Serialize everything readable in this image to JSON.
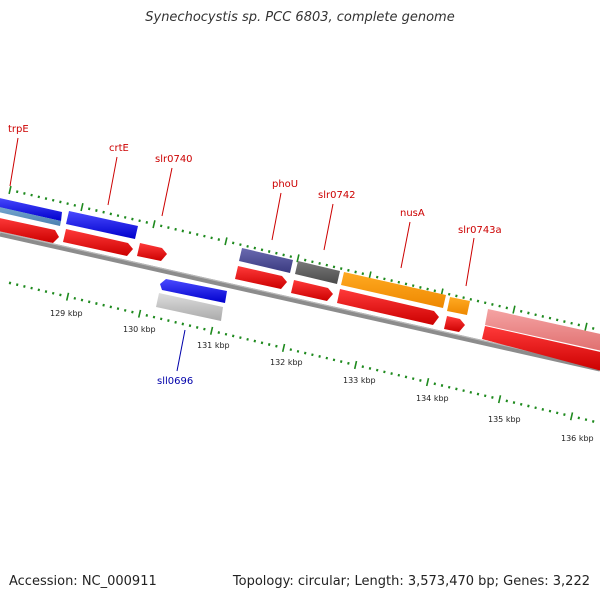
{
  "title": "Synechocystis sp. PCC 6803, complete genome",
  "footer": {
    "accession": "Accession: NC_000911",
    "summary": "Topology: circular; Length: 3,573,470 bp; Genes: 3,222"
  },
  "colors": {
    "tick": "#1e8a1e",
    "label_red": "#cc0000",
    "label_blue": "#0000aa",
    "backbone": "#8c8c8c"
  },
  "kbp_labels": [
    "129 kbp",
    "130 kbp",
    "131 kbp",
    "132 kbp",
    "133 kbp",
    "134 kbp",
    "135 kbp",
    "136 kbp"
  ],
  "gene_labels": {
    "trpE": "trpE",
    "crtE": "crtE",
    "slr0740": "slr0740",
    "phoU": "phoU",
    "slr0742": "slr0742",
    "nusA": "nusA",
    "slr0743a": "slr0743a",
    "sll0696": "sll0696"
  }
}
